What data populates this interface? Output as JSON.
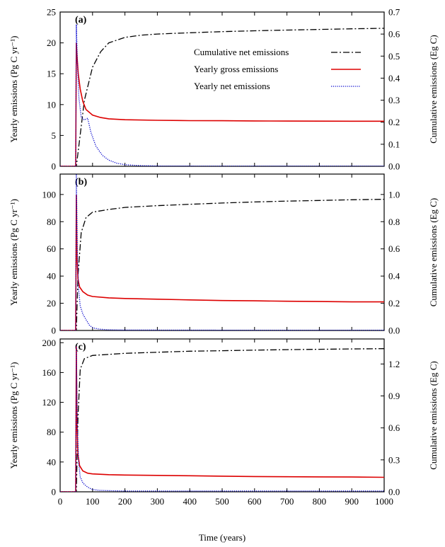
{
  "chart_data": {
    "type": "line",
    "xlabel": "Time (years)",
    "xlim": [
      0,
      1000
    ],
    "xticks": [
      0,
      100,
      200,
      300,
      400,
      500,
      600,
      700,
      800,
      900,
      1000
    ],
    "legend": {
      "placement": "top-right",
      "entries": [
        {
          "label": "Cumulative net emissions",
          "color": "#000000",
          "style": "dash-dot"
        },
        {
          "label": "Yearly gross emissions",
          "color": "#dd0000",
          "style": "solid"
        },
        {
          "label": "Yearly net emissions",
          "color": "#0000cc",
          "style": "dotted"
        }
      ]
    },
    "panels": [
      {
        "label": "(a)",
        "ylabel_left": "Yearly emissions (Pg C yr⁻¹)",
        "ylabel_right": "Cumulative emissions (Eg C)",
        "ylim_left": [
          0,
          25
        ],
        "ylim_right": [
          0,
          0.7
        ],
        "yticks_left": [
          "0",
          "5",
          "10",
          "15",
          "20",
          "25"
        ],
        "yticks_right": [
          "0.0",
          "0.1",
          "0.2",
          "0.3",
          "0.4",
          "0.5",
          "0.6",
          "0.7"
        ],
        "series": {
          "cumulative_net": {
            "x": [
              0,
              50,
              60,
              75,
              100,
              125,
              150,
              200,
              250,
              300,
              400,
              500,
              600,
              700,
              800,
              900,
              1000
            ],
            "y": [
              0,
              0,
              0.12,
              0.3,
              0.45,
              0.52,
              0.56,
              0.585,
              0.595,
              0.6,
              0.606,
              0.611,
              0.615,
              0.618,
              0.621,
              0.624,
              0.626
            ]
          },
          "gross": {
            "x": [
              0,
              48,
              50,
              52,
              56,
              62,
              70,
              80,
              100,
              125,
              150,
              200,
              300,
              400,
              500,
              600,
              700,
              800,
              900,
              1000
            ],
            "y": [
              0,
              0,
              20,
              18,
              15,
              12.5,
              10.5,
              9.2,
              8.3,
              7.9,
              7.7,
              7.55,
              7.45,
              7.4,
              7.38,
              7.35,
              7.33,
              7.32,
              7.3,
              7.3
            ]
          },
          "net": {
            "x": [
              0,
              48,
              50,
              53,
              58,
              65,
              75,
              85,
              95,
              110,
              130,
              150,
              175,
              200,
              250,
              300,
              500,
              1000
            ],
            "y": [
              0,
              0,
              23,
              17,
              11,
              8,
              7.5,
              7.8,
              5.5,
              3.3,
              1.8,
              1.0,
              0.5,
              0.25,
              0.1,
              0.05,
              0.02,
              0.02
            ]
          }
        }
      },
      {
        "label": "(b)",
        "ylabel_left": "Yearly emissions (Pg C yr⁻¹)",
        "ylabel_right": "Cumulative emissions (Eg C)",
        "ylim_left": [
          0,
          115
        ],
        "ylim_right": [
          0,
          1.15
        ],
        "yticks_left": [
          "0",
          "20",
          "40",
          "60",
          "80",
          "100"
        ],
        "yticks_right": [
          "0.0",
          "0.2",
          "0.4",
          "0.6",
          "0.8",
          "1.0"
        ],
        "series": {
          "cumulative_net": {
            "x": [
              0,
              50,
              55,
              65,
              80,
              100,
              150,
              200,
              300,
              400,
              500,
              600,
              700,
              800,
              900,
              1000
            ],
            "y": [
              0,
              0,
              0.4,
              0.72,
              0.83,
              0.87,
              0.89,
              0.905,
              0.918,
              0.928,
              0.937,
              0.945,
              0.951,
              0.956,
              0.961,
              0.965
            ]
          },
          "gross": {
            "x": [
              0,
              48,
              50,
              52,
              55,
              60,
              70,
              85,
              100,
              150,
              200,
              300,
              400,
              500,
              600,
              700,
              800,
              900,
              1000
            ],
            "y": [
              0,
              0,
              100,
              55,
              38,
              32,
              28.5,
              26,
              25,
              24,
              23.5,
              23,
              22.5,
              22,
              21.8,
              21.5,
              21.3,
              21,
              21
            ]
          },
          "net": {
            "x": [
              0,
              48,
              50,
              53,
              57,
              62,
              70,
              80,
              90,
              100,
              120,
              150,
              200,
              500,
              1000
            ],
            "y": [
              0,
              0,
              115,
              60,
              30,
              18,
              12,
              8,
              4,
              2,
              1,
              0.5,
              0.3,
              0.2,
              0.2
            ]
          }
        }
      },
      {
        "label": "(c)",
        "ylabel_left": "Yearly emissions (Pg C yr⁻¹)",
        "ylabel_right": "Cumulative emissions (Eg C)",
        "ylim_left": [
          0,
          205
        ],
        "ylim_right": [
          0,
          1.435
        ],
        "yticks_left": [
          "0",
          "40",
          "80",
          "120",
          "160",
          "200"
        ],
        "yticks_right": [
          "0.0",
          "0.3",
          "0.6",
          "0.9",
          "1.2"
        ],
        "series": {
          "cumulative_net": {
            "x": [
              0,
              50,
              55,
              62,
              75,
              100,
              150,
              200,
              300,
              400,
              500,
              600,
              700,
              800,
              900,
              1000
            ],
            "y": [
              0,
              0,
              0.7,
              1.15,
              1.25,
              1.28,
              1.29,
              1.3,
              1.31,
              1.32,
              1.325,
              1.33,
              1.335,
              1.338,
              1.341,
              1.344
            ]
          },
          "gross": {
            "x": [
              0,
              48,
              50,
              52,
              55,
              60,
              70,
              85,
              100,
              150,
              200,
              300,
              400,
              500,
              600,
              700,
              800,
              900,
              1000
            ],
            "y": [
              0,
              0,
              195,
              90,
              50,
              35,
              28,
              25,
              24,
              23,
              22.5,
              22,
              21.5,
              21,
              20.5,
              20.2,
              20,
              19.8,
              19.5
            ]
          },
          "net": {
            "x": [
              0,
              48,
              50,
              53,
              57,
              62,
              70,
              80,
              90,
              100,
              120,
              150,
              200,
              500,
              1000
            ],
            "y": [
              0,
              0,
              195,
              90,
              40,
              20,
              12,
              8,
              5,
              3,
              2,
              1.5,
              1,
              1,
              1
            ]
          }
        }
      }
    ]
  }
}
